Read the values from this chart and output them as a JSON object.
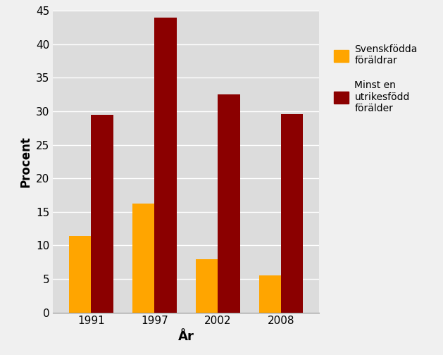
{
  "years": [
    "1991",
    "1997",
    "2002",
    "2008"
  ],
  "swedish_parents": [
    11.4,
    16.2,
    7.9,
    5.5
  ],
  "foreign_parent": [
    29.5,
    44.0,
    32.5,
    29.6
  ],
  "bar_color_swedish": "#FFA500",
  "bar_color_foreign": "#8B0000",
  "plot_bg_color": "#DCDCDC",
  "fig_bg_color": "#F0F0F0",
  "legend_bg_color": "#F0F0F0",
  "xlabel": "År",
  "ylabel": "Procent",
  "ylim": [
    0,
    45
  ],
  "yticks": [
    0,
    5,
    10,
    15,
    20,
    25,
    30,
    35,
    40,
    45
  ],
  "legend_label_1": "Svenskfödda\nföräldrar",
  "legend_label_2": "Minst en\nutrikesfödd\nförälder",
  "bar_width": 0.35,
  "figsize": [
    6.29,
    5.04
  ],
  "dpi": 100
}
